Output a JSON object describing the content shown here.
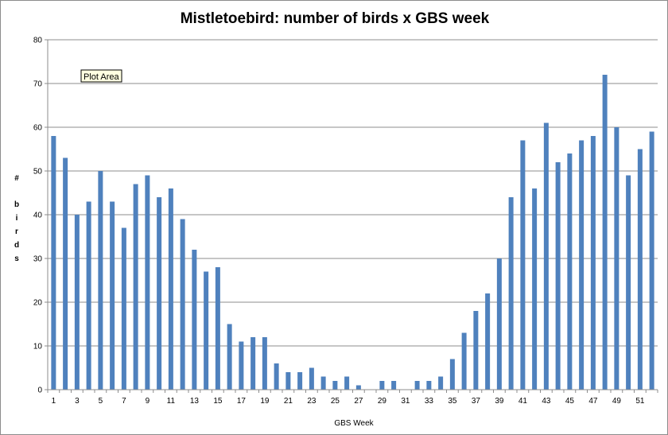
{
  "chart_data": {
    "type": "bar",
    "title": "Mistletoebird: number of birds x GBS week",
    "xlabel": "GBS Week",
    "ylabel": "# birds",
    "ylim": [
      0,
      80
    ],
    "yticks": [
      0,
      10,
      20,
      30,
      40,
      50,
      60,
      70,
      80
    ],
    "x_tick_labels": [
      "1",
      "3",
      "5",
      "7",
      "9",
      "11",
      "13",
      "15",
      "17",
      "19",
      "21",
      "23",
      "25",
      "27",
      "29",
      "31",
      "33",
      "35",
      "37",
      "39",
      "41",
      "43",
      "45",
      "47",
      "49",
      "51"
    ],
    "categories": [
      1,
      2,
      3,
      4,
      5,
      6,
      7,
      8,
      9,
      10,
      11,
      12,
      13,
      14,
      15,
      16,
      17,
      18,
      19,
      20,
      21,
      22,
      23,
      24,
      25,
      26,
      27,
      28,
      29,
      30,
      31,
      32,
      33,
      34,
      35,
      36,
      37,
      38,
      39,
      40,
      41,
      42,
      43,
      44,
      45,
      46,
      47,
      48,
      49,
      50,
      51,
      52
    ],
    "values": [
      58,
      53,
      40,
      43,
      50,
      43,
      37,
      47,
      49,
      44,
      46,
      39,
      32,
      27,
      28,
      15,
      11,
      12,
      12,
      6,
      4,
      4,
      5,
      3,
      2,
      3,
      1,
      0,
      2,
      2,
      0,
      2,
      2,
      3,
      7,
      13,
      18,
      22,
      30,
      44,
      57,
      46,
      61,
      52,
      54,
      57,
      58,
      72,
      60,
      49,
      55,
      59
    ],
    "grid": true,
    "legend": "none",
    "bar_color": "#4f81bd"
  },
  "tooltip": {
    "text": "Plot Area"
  }
}
